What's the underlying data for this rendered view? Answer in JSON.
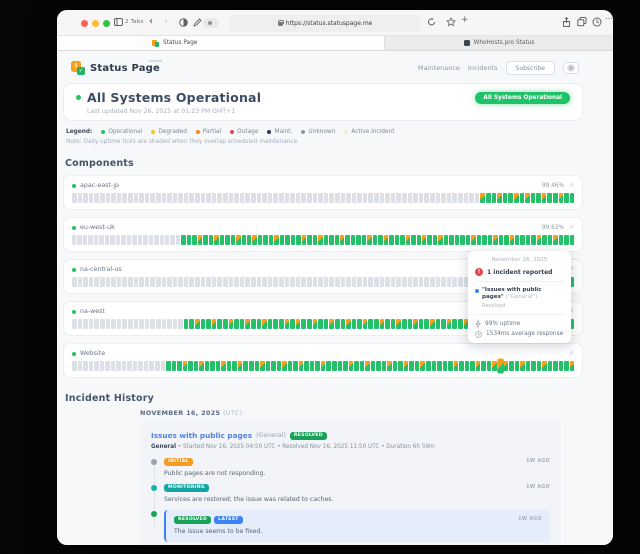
{
  "browser": {
    "tabs_label": "2 Tabs",
    "url": "https://status.statuspage.me",
    "active_tab_title": "Status Page",
    "inactive_tab_title": "WhoHosts.pro Status"
  },
  "header": {
    "brand": "Status Page",
    "hosted_tag": "hosted",
    "nav": [
      "Maintenance",
      "Incidents"
    ],
    "subscribe_label": "Subscribe"
  },
  "hero": {
    "title": "All Systems Operational",
    "updated": "Last updated Nov 26, 2025 at 01:23 PM GMT+1",
    "badge": "All Systems Operational"
  },
  "legend": {
    "label": "Legend:",
    "items": [
      {
        "label": "Operational",
        "color": "#22c55e"
      },
      {
        "label": "Degraded",
        "color": "#f2c41d"
      },
      {
        "label": "Partial",
        "color": "#f68c1e"
      },
      {
        "label": "Outage",
        "color": "#e5484d"
      },
      {
        "label": "Maint.",
        "color": "#2f3e57"
      },
      {
        "label": "Unknown",
        "color": "#8e99a8"
      },
      {
        "label": "Active Incident",
        "color": "#f6ecc8"
      }
    ],
    "note": "Note: Daily uptime ticks are shaded when they overlap scheduled maintenance."
  },
  "components": {
    "title": "Components",
    "rows": [
      {
        "name": "apac-east-jp",
        "uptime": "99.46%",
        "ticks": "uuuuuuuuuuuuuuuuuuuuuuuuuuuuuuuuuuuuuuuuuuuuuuuuuuuuuuuuuuuuuuuuuuuuuuuuumoomoomomoomoomoo"
      },
      {
        "name": "eu-west-uk",
        "uptime": "99.63%",
        "ticks": "uuuuuuuuuuuuuuuuuuuuooomoomooomoomooomoooomoomooomoooomoomooomoomoomooooomooomoomoooomoomooo"
      },
      {
        "name": "na-central-us",
        "uptime": "",
        "ticks": "uuuuuuuuuuuuuuuuuuuuuuuuuuuuuuuuuuuuuuuuuuuuuuuuuuuuuuuuuuuuuuuuuuuuuuuuuuuuuuuuuuuuuuoooo"
      },
      {
        "name": "na-west",
        "uptime": "",
        "ticks": "uuuuuuuuuuuuuuuuuuuuoomoomoomoomoomooomomoomoomoomoomoomoomoomoomoomoomoomooomooomoomoomoo"
      },
      {
        "name": "Website",
        "uptime": "",
        "ticks": "uuuuuuuuuuuuuuuuuooomoomooomoomooomooomoomooomoooomoomooomoomoomooooomooomoomhmoomooomoooom"
      }
    ]
  },
  "tooltip": {
    "date": "November 16, 2025",
    "reported": "1 incident reported",
    "incident_title": "\"Issues with public pages\"",
    "incident_scope": "(\"General\")",
    "incident_status": "Resolved",
    "uptime": "99% uptime",
    "response": "1534ms average response"
  },
  "incident_history": {
    "title": "Incident History",
    "date_label": "NOVEMBER 16, 2025",
    "date_suffix": "(UTC)",
    "incident": {
      "title": "Issues with public pages",
      "scope": "(General)",
      "status_badge": {
        "label": "RESOLVED",
        "color": "#17a257"
      },
      "meta_prefix": "General",
      "meta_rest": " • Started Nov 16, 2025 04:50 UTC • Resolved Nov 16, 2025 11:50 UTC • Duration 6h 59m",
      "updates": [
        {
          "badges": [
            {
              "label": "INITIAL",
              "color": "#f59a23"
            }
          ],
          "time": "1W AGO",
          "text": "Public pages are not responding.",
          "dot": "#9aa3af",
          "highlight": false
        },
        {
          "badges": [
            {
              "label": "MONITORING",
              "color": "#12a5a1"
            }
          ],
          "time": "1W AGO",
          "text": "Services are restored; the issue was related to caches.",
          "dot": "#12b5a5",
          "highlight": false
        },
        {
          "badges": [
            {
              "label": "RESOLVED",
              "color": "#17a257"
            },
            {
              "label": "LATEST",
              "color": "#3b82f6"
            }
          ],
          "time": "1W AGO",
          "text": "The issue seems to be fixed.",
          "dot": "#17a257",
          "highlight": true
        }
      ]
    }
  }
}
